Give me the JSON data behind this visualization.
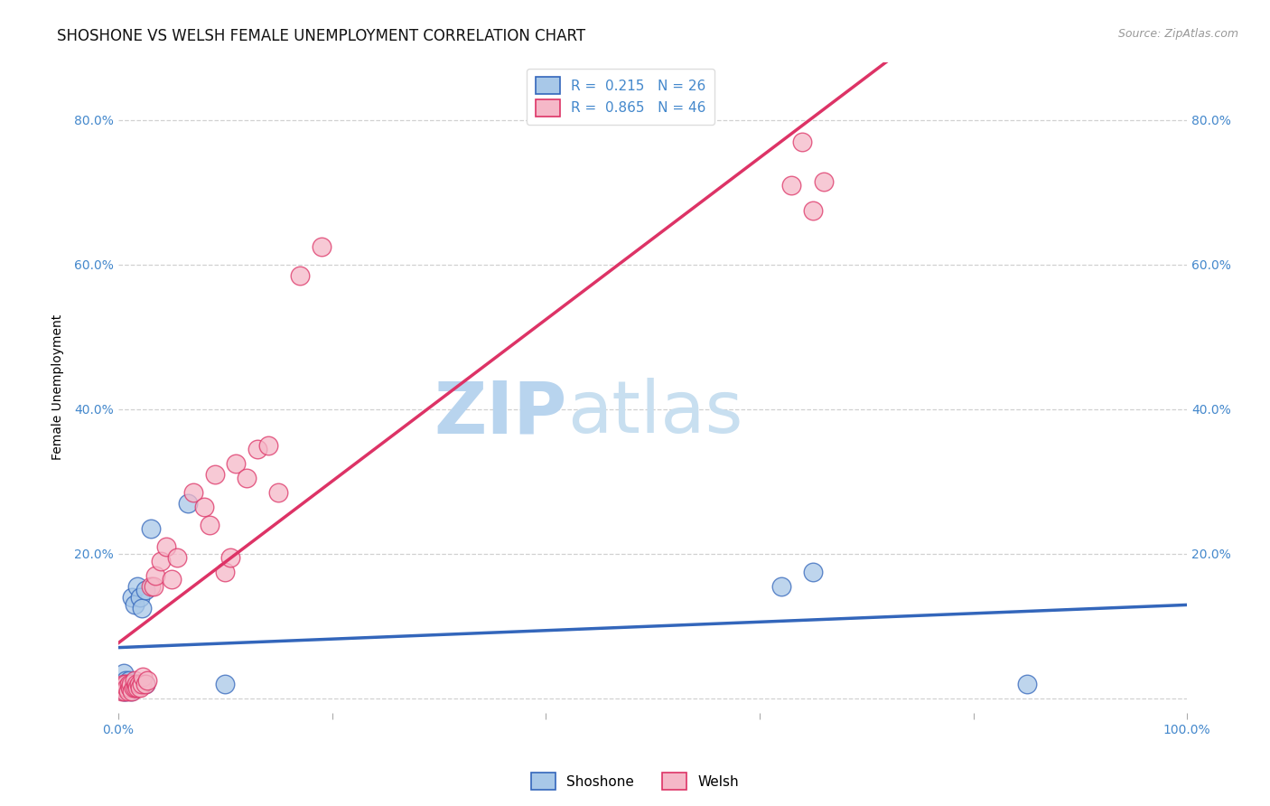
{
  "title": "SHOSHONE VS WELSH FEMALE UNEMPLOYMENT CORRELATION CHART",
  "source": "Source: ZipAtlas.com",
  "ylabel": "Female Unemployment",
  "xlabel": "",
  "xlim": [
    0.0,
    1.0
  ],
  "ylim": [
    -0.02,
    0.88
  ],
  "yticks": [
    0.0,
    0.2,
    0.4,
    0.6,
    0.8
  ],
  "ytick_labels": [
    "",
    "20.0%",
    "40.0%",
    "60.0%",
    "80.0%"
  ],
  "xticks": [
    0.0,
    0.2,
    0.4,
    0.6,
    0.8,
    1.0
  ],
  "xtick_labels": [
    "0.0%",
    "",
    "",
    "",
    "",
    "100.0%"
  ],
  "background_color": "#ffffff",
  "grid_color": "#cccccc",
  "shoshone_color": "#a8c8e8",
  "welsh_color": "#f5b8c8",
  "shoshone_line_color": "#3366bb",
  "welsh_line_color": "#dd3366",
  "legend_R_shoshone": "0.215",
  "legend_N_shoshone": "26",
  "legend_R_welsh": "0.865",
  "legend_N_welsh": "46",
  "watermark_zip": "ZIP",
  "watermark_atlas": "atlas",
  "watermark_color_zip": "#b8d4ee",
  "watermark_color_atlas": "#c8dff0",
  "shoshone_x": [
    0.005,
    0.005,
    0.007,
    0.008,
    0.009,
    0.01,
    0.011,
    0.012,
    0.013,
    0.015,
    0.015,
    0.017,
    0.018,
    0.02,
    0.022,
    0.025,
    0.025,
    0.03,
    0.065,
    0.1,
    0.62,
    0.65,
    0.85,
    0.005,
    0.007,
    0.012
  ],
  "shoshone_y": [
    0.02,
    0.035,
    0.025,
    0.015,
    0.02,
    0.025,
    0.015,
    0.02,
    0.14,
    0.13,
    0.015,
    0.02,
    0.155,
    0.14,
    0.125,
    0.15,
    0.02,
    0.235,
    0.27,
    0.02,
    0.155,
    0.175,
    0.02,
    0.01,
    0.01,
    0.01
  ],
  "welsh_x": [
    0.003,
    0.004,
    0.005,
    0.006,
    0.007,
    0.008,
    0.009,
    0.01,
    0.011,
    0.012,
    0.013,
    0.014,
    0.015,
    0.016,
    0.017,
    0.018,
    0.019,
    0.02,
    0.022,
    0.023,
    0.025,
    0.027,
    0.03,
    0.033,
    0.035,
    0.04,
    0.045,
    0.05,
    0.055,
    0.07,
    0.08,
    0.085,
    0.09,
    0.1,
    0.105,
    0.11,
    0.12,
    0.13,
    0.14,
    0.15,
    0.17,
    0.19,
    0.63,
    0.64,
    0.65,
    0.66
  ],
  "welsh_y": [
    0.01,
    0.015,
    0.02,
    0.01,
    0.02,
    0.015,
    0.01,
    0.02,
    0.015,
    0.02,
    0.01,
    0.015,
    0.025,
    0.015,
    0.02,
    0.015,
    0.02,
    0.015,
    0.02,
    0.03,
    0.02,
    0.025,
    0.155,
    0.155,
    0.17,
    0.19,
    0.21,
    0.165,
    0.195,
    0.285,
    0.265,
    0.24,
    0.31,
    0.175,
    0.195,
    0.325,
    0.305,
    0.345,
    0.35,
    0.285,
    0.585,
    0.625,
    0.71,
    0.77,
    0.675,
    0.715
  ],
  "title_fontsize": 12,
  "axis_label_fontsize": 10,
  "tick_fontsize": 10,
  "legend_fontsize": 11
}
